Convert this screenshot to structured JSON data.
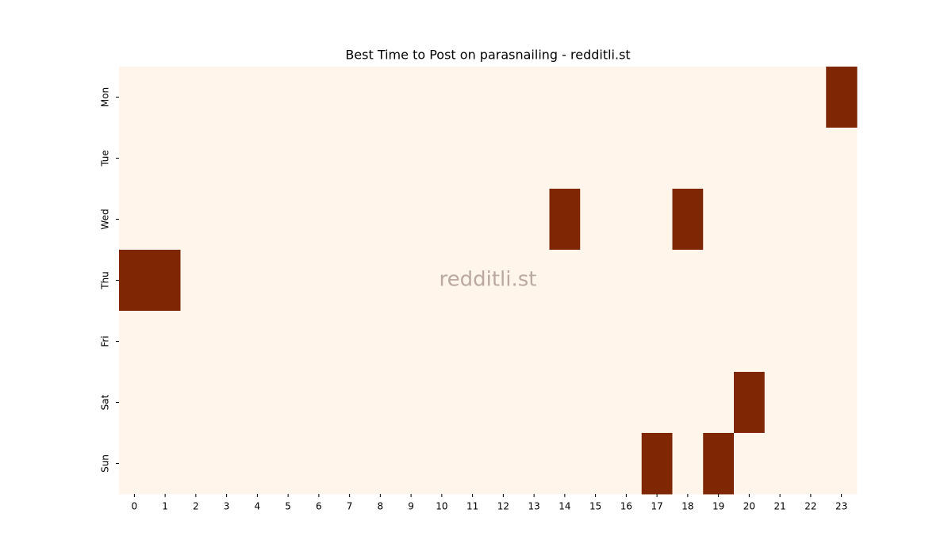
{
  "chart_data": {
    "type": "heatmap",
    "title": "Best Time to Post on parasnailing - redditli.st",
    "annotation": "redditli.st",
    "x": [
      0,
      1,
      2,
      3,
      4,
      5,
      6,
      7,
      8,
      9,
      10,
      11,
      12,
      13,
      14,
      15,
      16,
      17,
      18,
      19,
      20,
      21,
      22,
      23
    ],
    "y": [
      "Mon",
      "Tue",
      "Wed",
      "Thu",
      "Fri",
      "Sat",
      "Sun"
    ],
    "values": [
      [
        0,
        0,
        0,
        0,
        0,
        0,
        0,
        0,
        0,
        0,
        0,
        0,
        0,
        0,
        0,
        0,
        0,
        0,
        0,
        0,
        0,
        0,
        0,
        1
      ],
      [
        0,
        0,
        0,
        0,
        0,
        0,
        0,
        0,
        0,
        0,
        0,
        0,
        0,
        0,
        0,
        0,
        0,
        0,
        0,
        0,
        0,
        0,
        0,
        0
      ],
      [
        0,
        0,
        0,
        0,
        0,
        0,
        0,
        0,
        0,
        0,
        0,
        0,
        0,
        0,
        1,
        0,
        0,
        0,
        1,
        0,
        0,
        0,
        0,
        0
      ],
      [
        1,
        1,
        0,
        0,
        0,
        0,
        0,
        0,
        0,
        0,
        0,
        0,
        0,
        0,
        0,
        0,
        0,
        0,
        0,
        0,
        0,
        0,
        0,
        0
      ],
      [
        0,
        0,
        0,
        0,
        0,
        0,
        0,
        0,
        0,
        0,
        0,
        0,
        0,
        0,
        0,
        0,
        0,
        0,
        0,
        0,
        0,
        0,
        0,
        0
      ],
      [
        0,
        0,
        0,
        0,
        0,
        0,
        0,
        0,
        0,
        0,
        0,
        0,
        0,
        0,
        0,
        0,
        0,
        0,
        0,
        0,
        1,
        0,
        0,
        0
      ],
      [
        0,
        0,
        0,
        0,
        0,
        0,
        0,
        0,
        0,
        0,
        0,
        0,
        0,
        0,
        0,
        0,
        0,
        1,
        0,
        1,
        0,
        0,
        0,
        0
      ]
    ],
    "colors": [
      "#fff5eb",
      "#7f2704"
    ]
  }
}
